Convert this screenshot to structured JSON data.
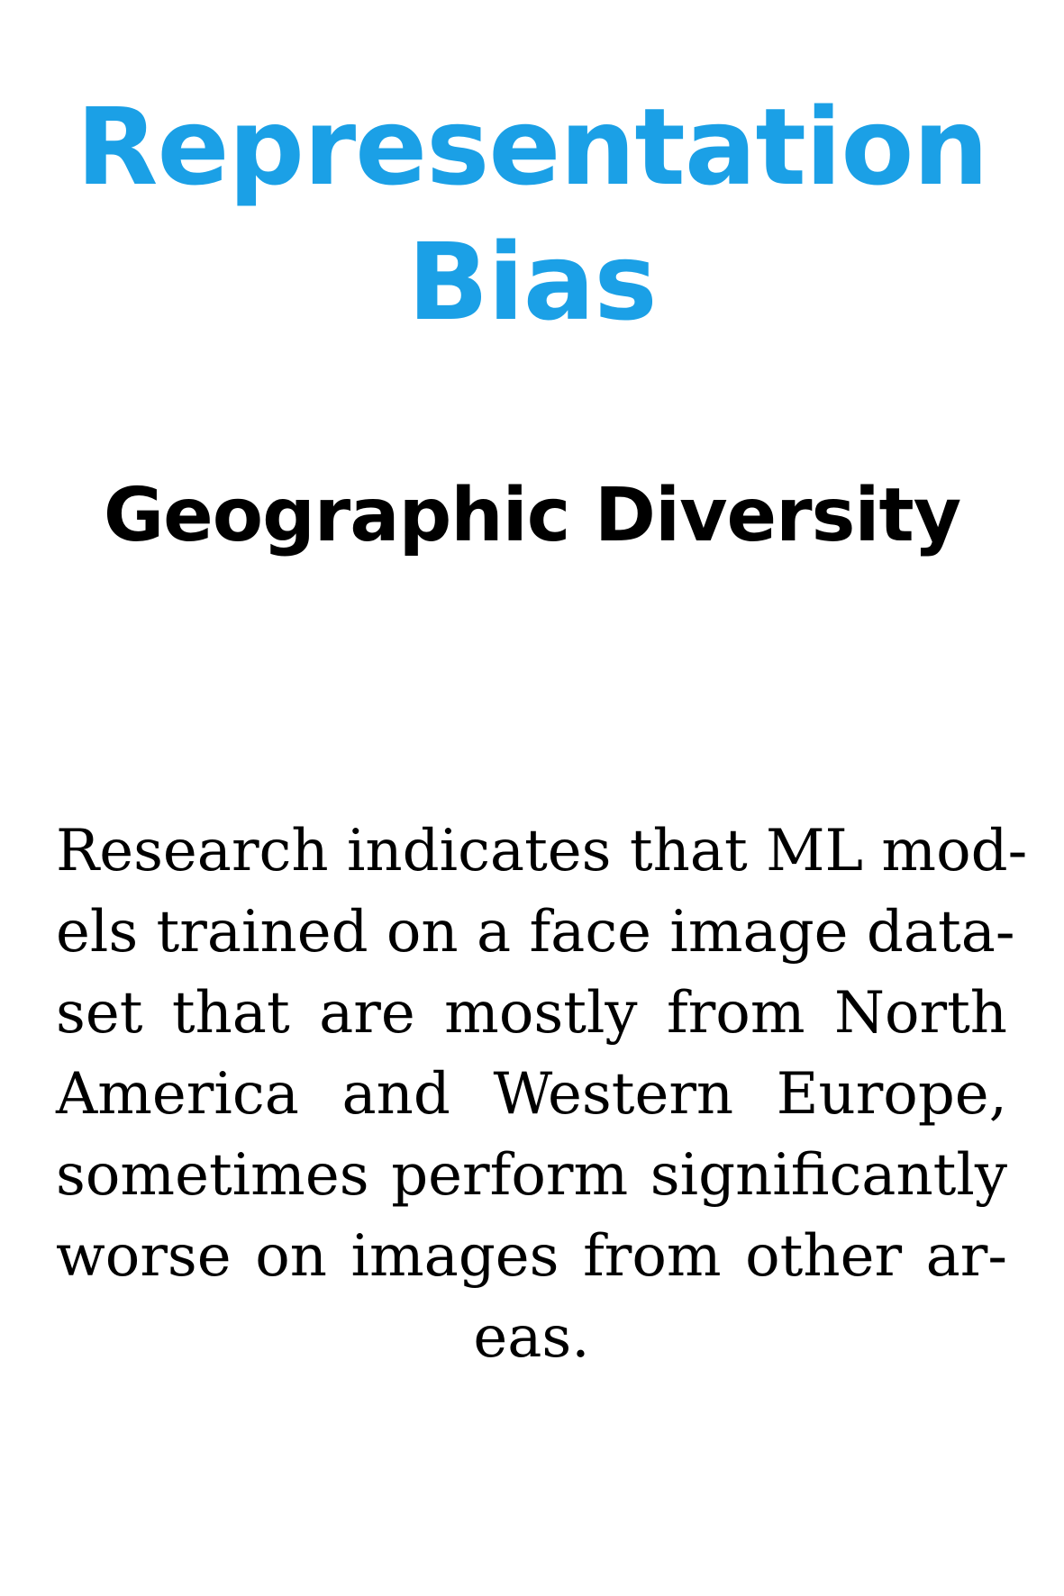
{
  "title": {
    "line1": "Representation",
    "line2": "Bias"
  },
  "subtitle": "Geographic Diversity",
  "body": {
    "lines": [
      "Research indicates that ML mod-",
      "els trained on a face image data-",
      "set that are mostly from North",
      "America and Western Europe,",
      "sometimes perform significantly",
      "worse on images from other ar-",
      "eas."
    ]
  },
  "colors": {
    "title": "#1ba0e6",
    "text": "#000000",
    "background": "#ffffff"
  }
}
